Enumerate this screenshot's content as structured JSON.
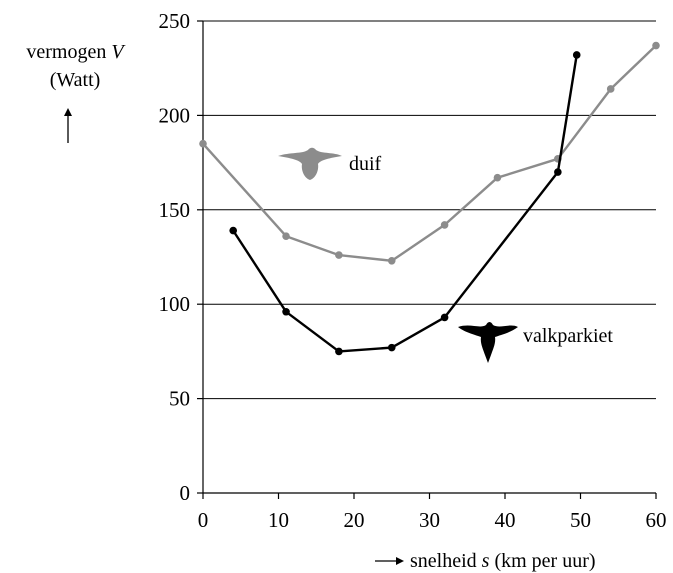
{
  "chart_data": {
    "type": "line",
    "ylabel_line1": "vermogen ",
    "ylabel_var": "V",
    "ylabel_unit": "(Watt)",
    "xlabel_prefix": "snelheid ",
    "xlabel_var": "s",
    "xlabel_unit": " (km per uur)",
    "xlim": [
      0,
      60
    ],
    "ylim": [
      0,
      250
    ],
    "xticks": [
      0,
      10,
      20,
      30,
      40,
      50,
      60
    ],
    "yticks": [
      0,
      50,
      100,
      150,
      200,
      250
    ],
    "grid": true,
    "series": [
      {
        "name": "duif",
        "color": "#8c8c8c",
        "icon": "pigeon-silhouette-icon",
        "points": [
          [
            0,
            185
          ],
          [
            11,
            136
          ],
          [
            18,
            126
          ],
          [
            25,
            123
          ],
          [
            32,
            142
          ],
          [
            39,
            167
          ],
          [
            47,
            177
          ],
          [
            54,
            214
          ],
          [
            60,
            237
          ]
        ]
      },
      {
        "name": "valkparkiet",
        "color": "#000000",
        "icon": "cockatiel-silhouette-icon",
        "points": [
          [
            4,
            139
          ],
          [
            11,
            96
          ],
          [
            18,
            75
          ],
          [
            25,
            77
          ],
          [
            32,
            93
          ],
          [
            47,
            170
          ],
          [
            49.5,
            232
          ]
        ]
      }
    ]
  }
}
